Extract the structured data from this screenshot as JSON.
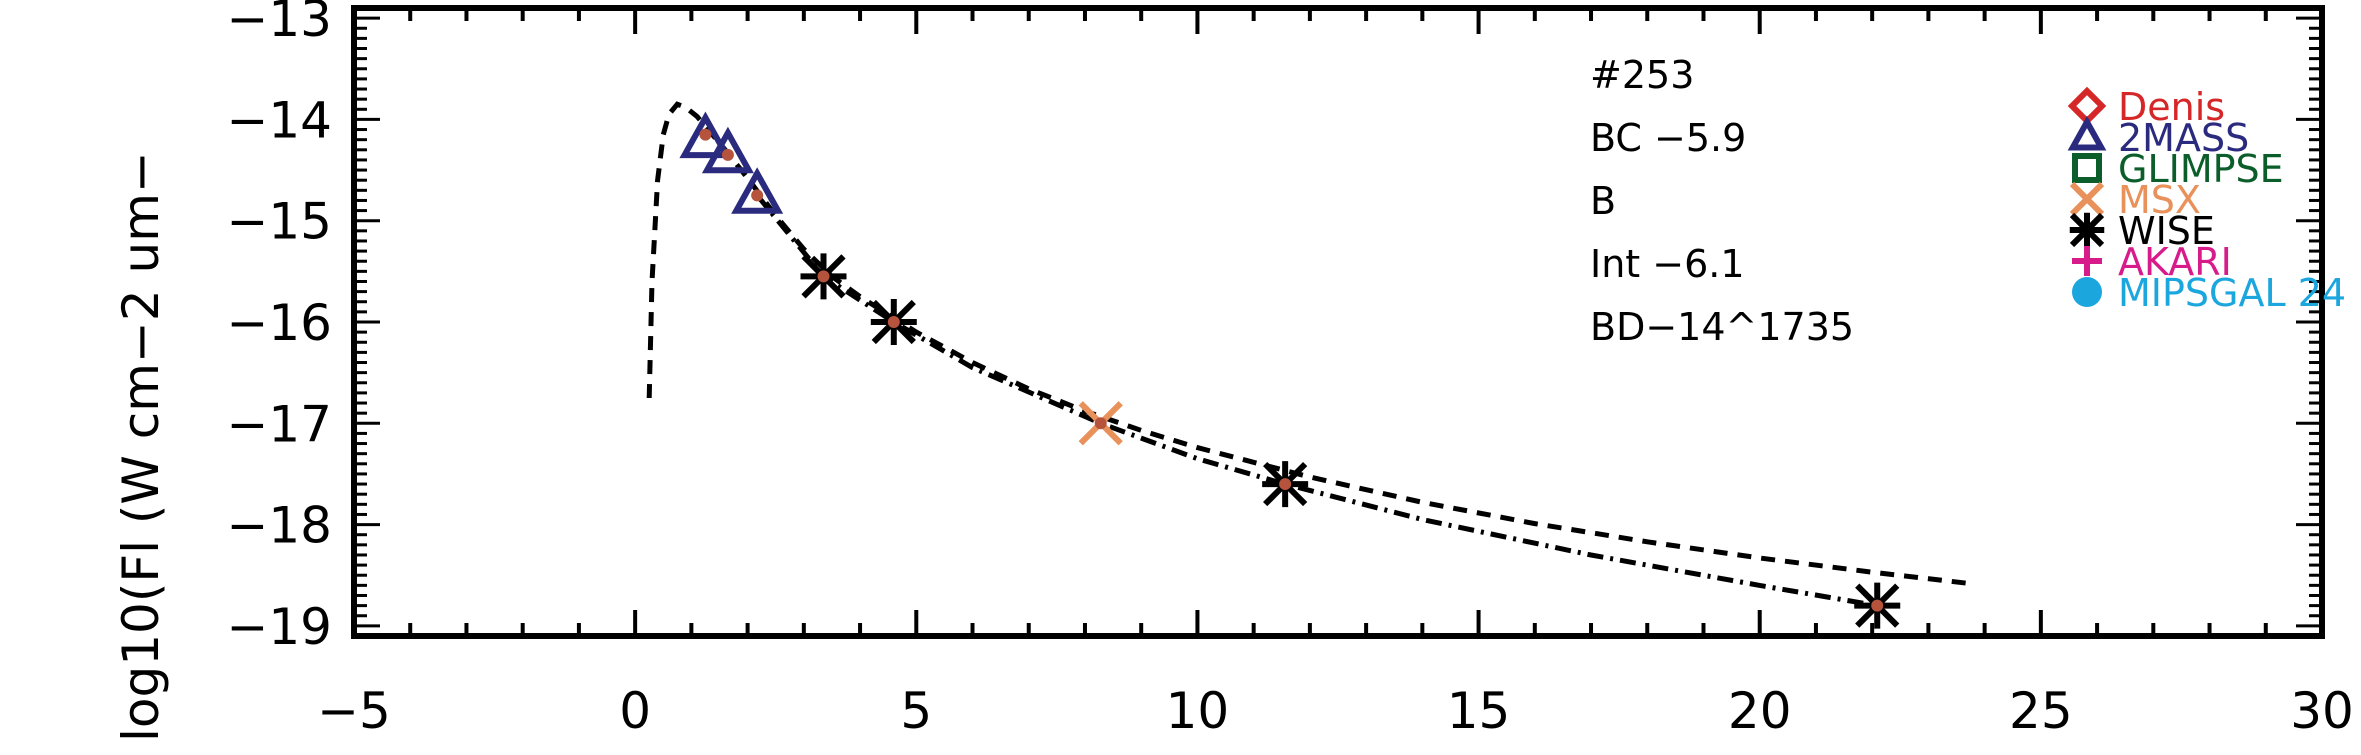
{
  "chart_data": {
    "type": "scatter",
    "ylabel": "log10(Fl (W cm−2 um−",
    "xlim": [
      -5,
      30
    ],
    "ylim": [
      -19.1,
      -12.9
    ],
    "x_ticks": [
      -5,
      0,
      5,
      10,
      15,
      20,
      25,
      30
    ],
    "x_tick_labels": [
      "−5",
      "0",
      "5",
      "10",
      "15",
      "20",
      "25",
      "30"
    ],
    "y_ticks": [
      -13,
      -14,
      -15,
      -16,
      -17,
      -18,
      -19
    ],
    "y_tick_labels": [
      "−13",
      "−14",
      "−15",
      "−16",
      "−17",
      "−18",
      "−19"
    ],
    "annotations": [
      "#253",
      "BC  −5.9",
      "B",
      "Int  −6.1",
      "BD−14^1735"
    ],
    "legend": {
      "placement": "top-right",
      "entries": [
        {
          "label": "Denis",
          "marker": "diamond",
          "color": "#d62728"
        },
        {
          "label": "2MASS",
          "marker": "triangle",
          "color": "#2a2a7e"
        },
        {
          "label": "GLIMPSE",
          "marker": "square",
          "color": "#0b5d2a"
        },
        {
          "label": "MSX",
          "marker": "x",
          "color": "#e8915a"
        },
        {
          "label": "WISE",
          "marker": "asterisk",
          "color": "#000000"
        },
        {
          "label": "AKARI",
          "marker": "plus",
          "color": "#d81b8a"
        },
        {
          "label": "MIPSGAL 24",
          "marker": "circle",
          "color": "#1ba6de"
        }
      ]
    },
    "series": [
      {
        "marker": "triangle",
        "color": "#2a2a7e",
        "x": [
          1.25,
          1.65,
          2.17
        ],
        "y": [
          -14.2,
          -14.35,
          -14.75
        ]
      },
      {
        "marker": "x",
        "color": "#e8915a",
        "x": [
          8.28
        ],
        "y": [
          -17.0
        ]
      },
      {
        "marker": "asterisk",
        "color": "#000000",
        "x": [
          3.35,
          4.6,
          11.56,
          22.09
        ],
        "y": [
          -15.55,
          -16.0,
          -17.6,
          -18.8
        ]
      },
      {
        "marker": "dot",
        "color": "#b5533c",
        "x": [
          1.25,
          1.65,
          2.17,
          3.35,
          4.6,
          8.28,
          11.56,
          22.09
        ],
        "y": [
          -14.15,
          -14.35,
          -14.75,
          -15.55,
          -16.0,
          -17.0,
          -17.6,
          -18.8
        ]
      }
    ],
    "curves": [
      {
        "style": "dashed",
        "color": "#000000",
        "x": [
          0.25,
          0.3,
          0.4,
          0.5,
          0.6,
          0.75,
          0.9,
          1.1,
          1.3,
          1.6,
          2.0,
          2.5,
          3.0,
          3.5,
          4.0,
          5.0,
          6.0,
          7.0,
          8.0,
          9.0,
          10.0,
          12.0,
          14.0,
          16.0,
          18.0,
          20.0,
          22.0,
          23.7
        ],
        "y": [
          -16.75,
          -15.6,
          -14.6,
          -14.15,
          -13.95,
          -13.85,
          -13.88,
          -13.97,
          -14.1,
          -14.3,
          -14.58,
          -14.95,
          -15.28,
          -15.55,
          -15.75,
          -16.1,
          -16.4,
          -16.66,
          -16.88,
          -17.07,
          -17.24,
          -17.53,
          -17.78,
          -17.99,
          -18.17,
          -18.33,
          -18.47,
          -18.58
        ]
      },
      {
        "style": "dashdot",
        "color": "#000000",
        "x": [
          2.17,
          3.35,
          4.6,
          6.0,
          8.28,
          10.0,
          11.56,
          14.0,
          17.0,
          20.0,
          22.09
        ],
        "y": [
          -14.75,
          -15.55,
          -16.0,
          -16.45,
          -17.0,
          -17.35,
          -17.6,
          -17.95,
          -18.3,
          -18.6,
          -18.8
        ]
      }
    ]
  }
}
